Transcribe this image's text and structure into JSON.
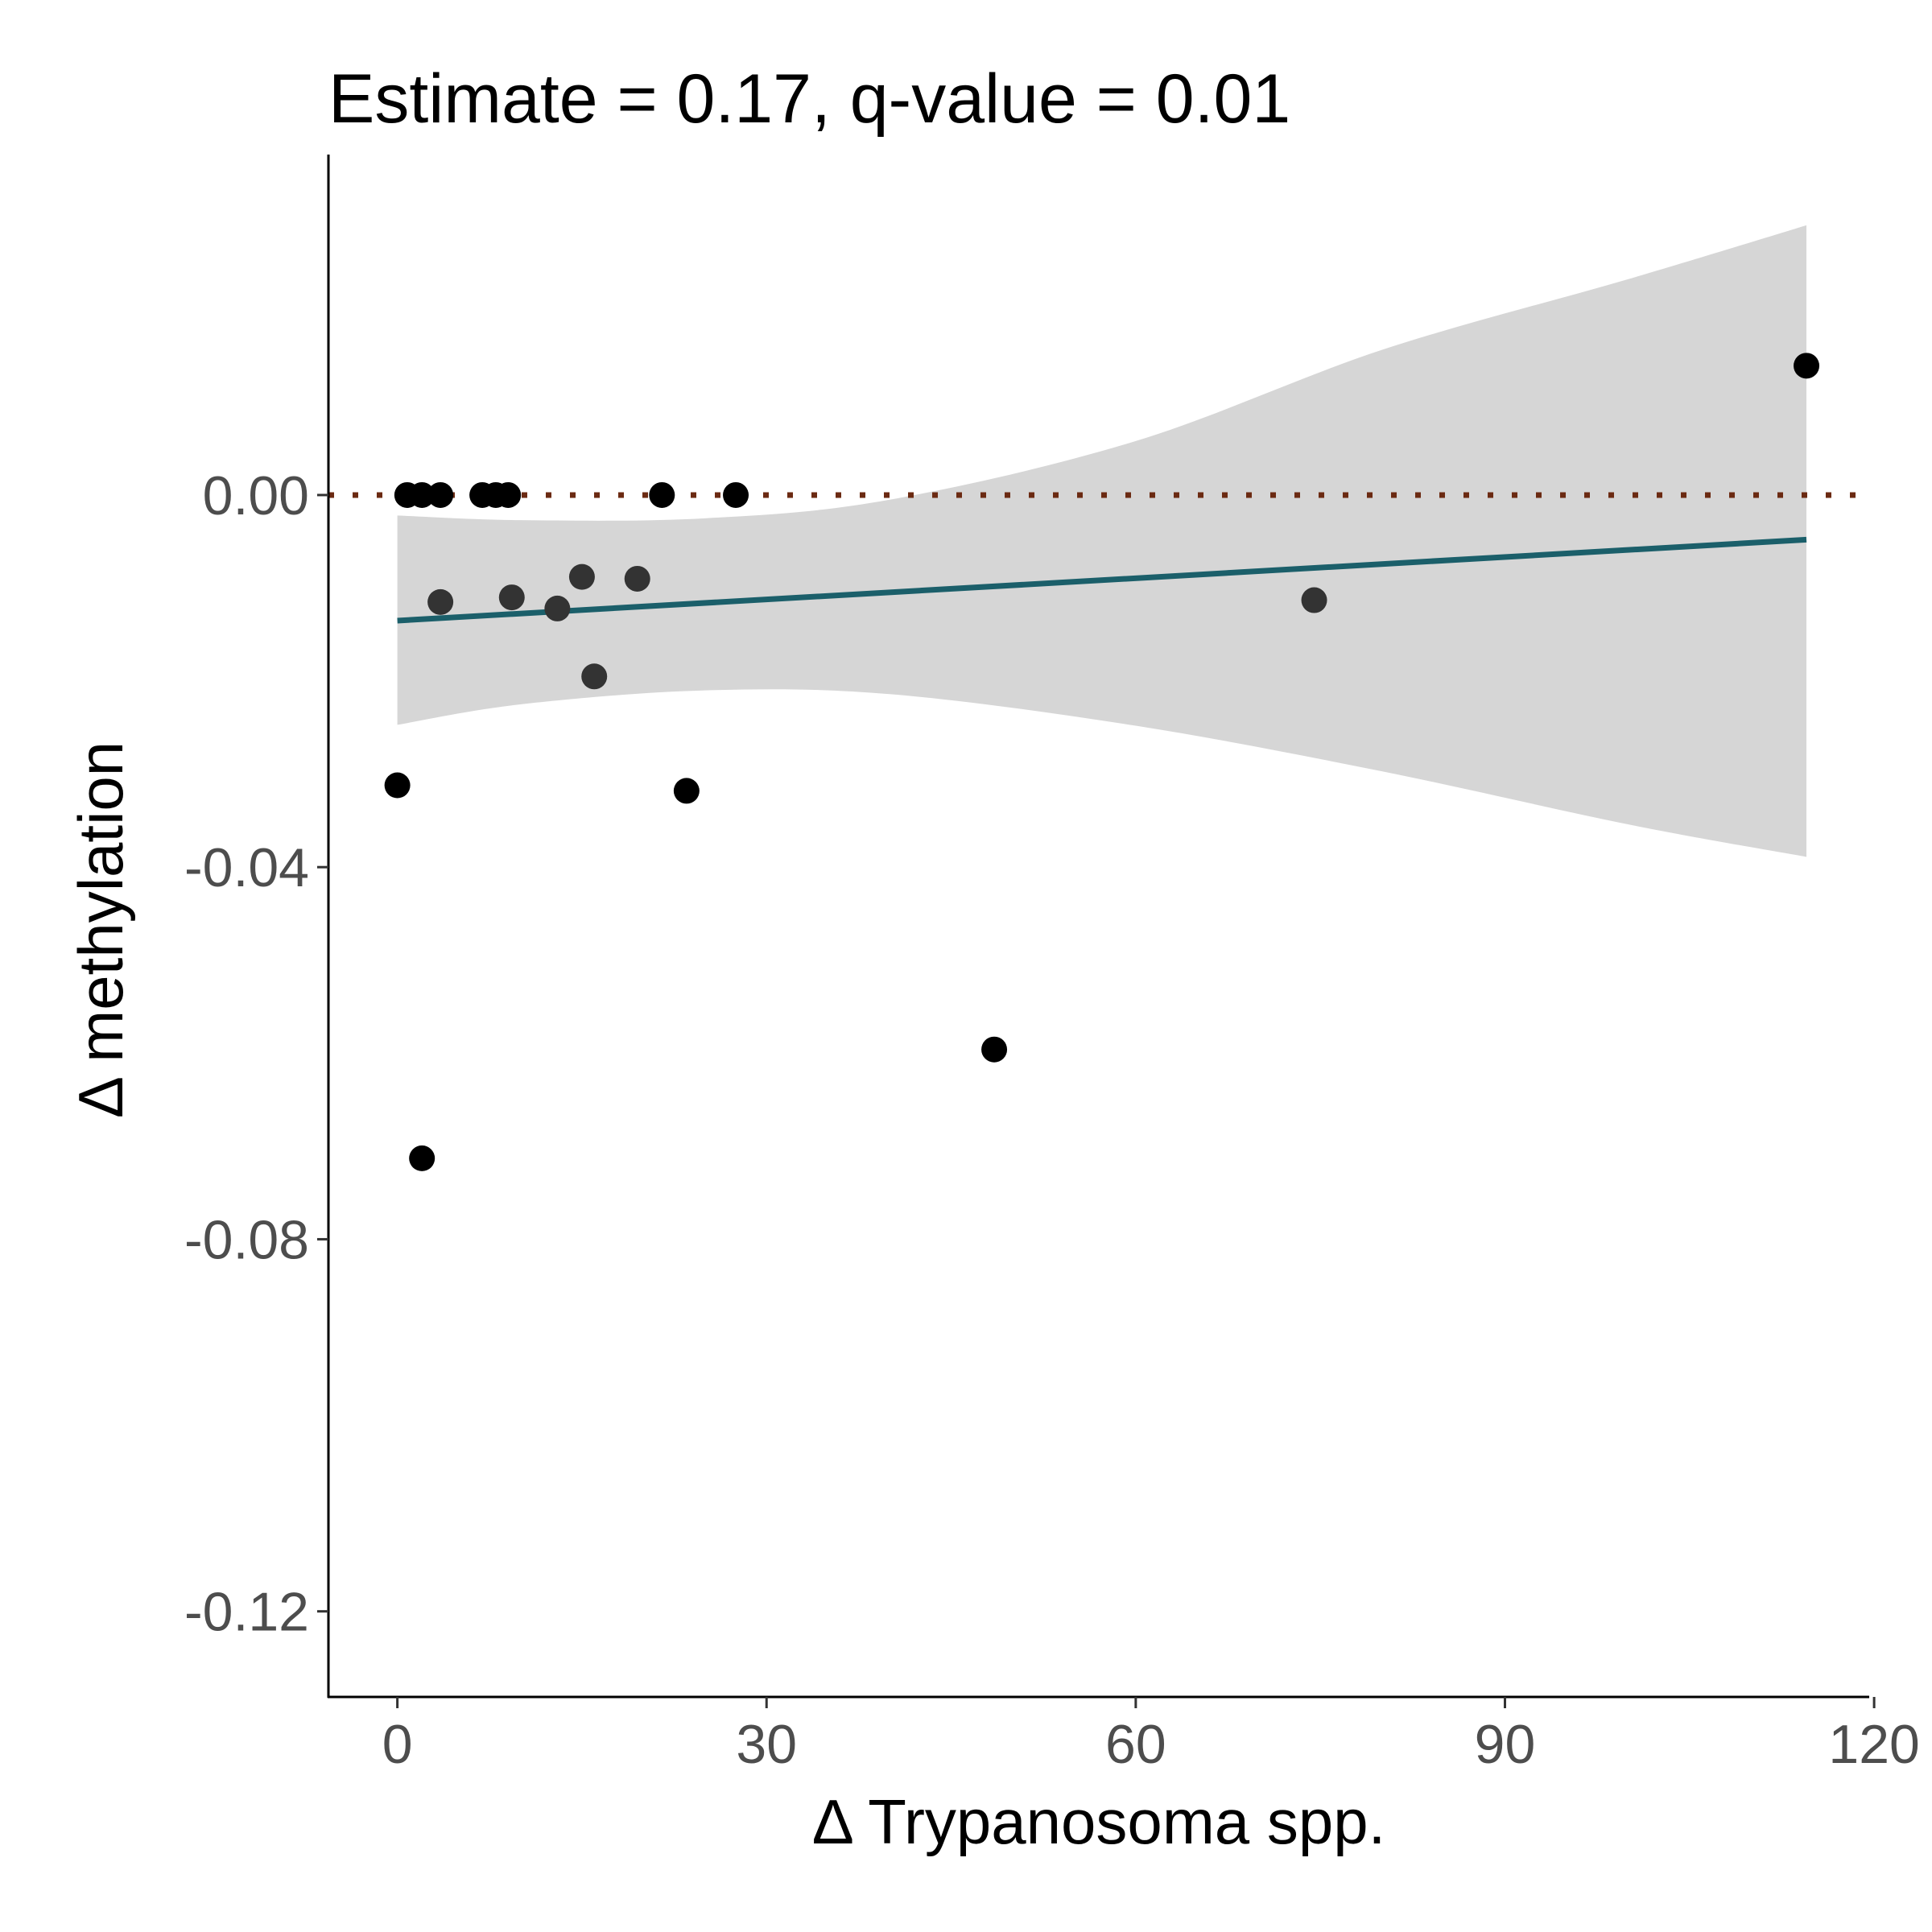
{
  "chart_data": {
    "type": "scatter",
    "title": "Estimate = 0.17, q-value = 0.01",
    "xlabel": "Δ Trypanosoma spp.",
    "ylabel": "Δ methylation",
    "xlim": [
      -5.6,
      119.6
    ],
    "ylim": [
      -0.1292,
      0.0366
    ],
    "x_ticks": [
      0,
      30,
      60,
      90,
      120
    ],
    "x_tick_labels": [
      "0",
      "30",
      "60",
      "90",
      "120"
    ],
    "y_ticks": [
      0.0,
      -0.04,
      -0.08,
      -0.12
    ],
    "y_tick_labels": [
      "0.00",
      "-0.04",
      "-0.08",
      "-0.12"
    ],
    "grid": false,
    "legend": "none",
    "reference_line": {
      "y": 0,
      "style": "dotted",
      "color": "#6b2a12"
    },
    "regression": {
      "x_start": 0,
      "y_start": -0.0135,
      "x_end": 114.5,
      "y_end": -0.0048,
      "color": "#1b5f6a"
    },
    "confidence_band": {
      "color": "#d6d6d6",
      "x": [
        0,
        10,
        25,
        40,
        60,
        80,
        100,
        114.5
      ],
      "upper": [
        -0.0022,
        -0.0027,
        -0.0025,
        -0.0005,
        0.0058,
        0.0156,
        0.0232,
        0.029
      ],
      "lower": [
        -0.0247,
        -0.0225,
        -0.021,
        -0.0214,
        -0.0248,
        -0.0297,
        -0.0354,
        -0.0389
      ]
    },
    "points": [
      {
        "x": 0.0,
        "y": -0.0312,
        "color": "#000000"
      },
      {
        "x": 0.8,
        "y": 0.0,
        "color": "#000000"
      },
      {
        "x": 2.0,
        "y": 0.0,
        "color": "#000000"
      },
      {
        "x": 2.0,
        "y": -0.0713,
        "color": "#000000"
      },
      {
        "x": 3.5,
        "y": 0.0,
        "color": "#000000"
      },
      {
        "x": 3.5,
        "y": -0.0115,
        "color": "#333333"
      },
      {
        "x": 6.9,
        "y": 0.0,
        "color": "#000000"
      },
      {
        "x": 8.0,
        "y": 0.0,
        "color": "#000000"
      },
      {
        "x": 9.0,
        "y": 0.0,
        "color": "#000000"
      },
      {
        "x": 9.3,
        "y": -0.011,
        "color": "#333333"
      },
      {
        "x": 13.0,
        "y": -0.0122,
        "color": "#333333"
      },
      {
        "x": 15.0,
        "y": -0.0088,
        "color": "#333333"
      },
      {
        "x": 16.0,
        "y": -0.0195,
        "color": "#333333"
      },
      {
        "x": 19.5,
        "y": -0.009,
        "color": "#333333"
      },
      {
        "x": 21.5,
        "y": 0.0,
        "color": "#000000"
      },
      {
        "x": 23.5,
        "y": -0.0318,
        "color": "#000000"
      },
      {
        "x": 27.5,
        "y": 0.0,
        "color": "#000000"
      },
      {
        "x": 48.5,
        "y": -0.0596,
        "color": "#000000"
      },
      {
        "x": 74.5,
        "y": -0.0113,
        "color": "#333333"
      },
      {
        "x": 114.5,
        "y": 0.0139,
        "color": "#000000"
      }
    ]
  }
}
